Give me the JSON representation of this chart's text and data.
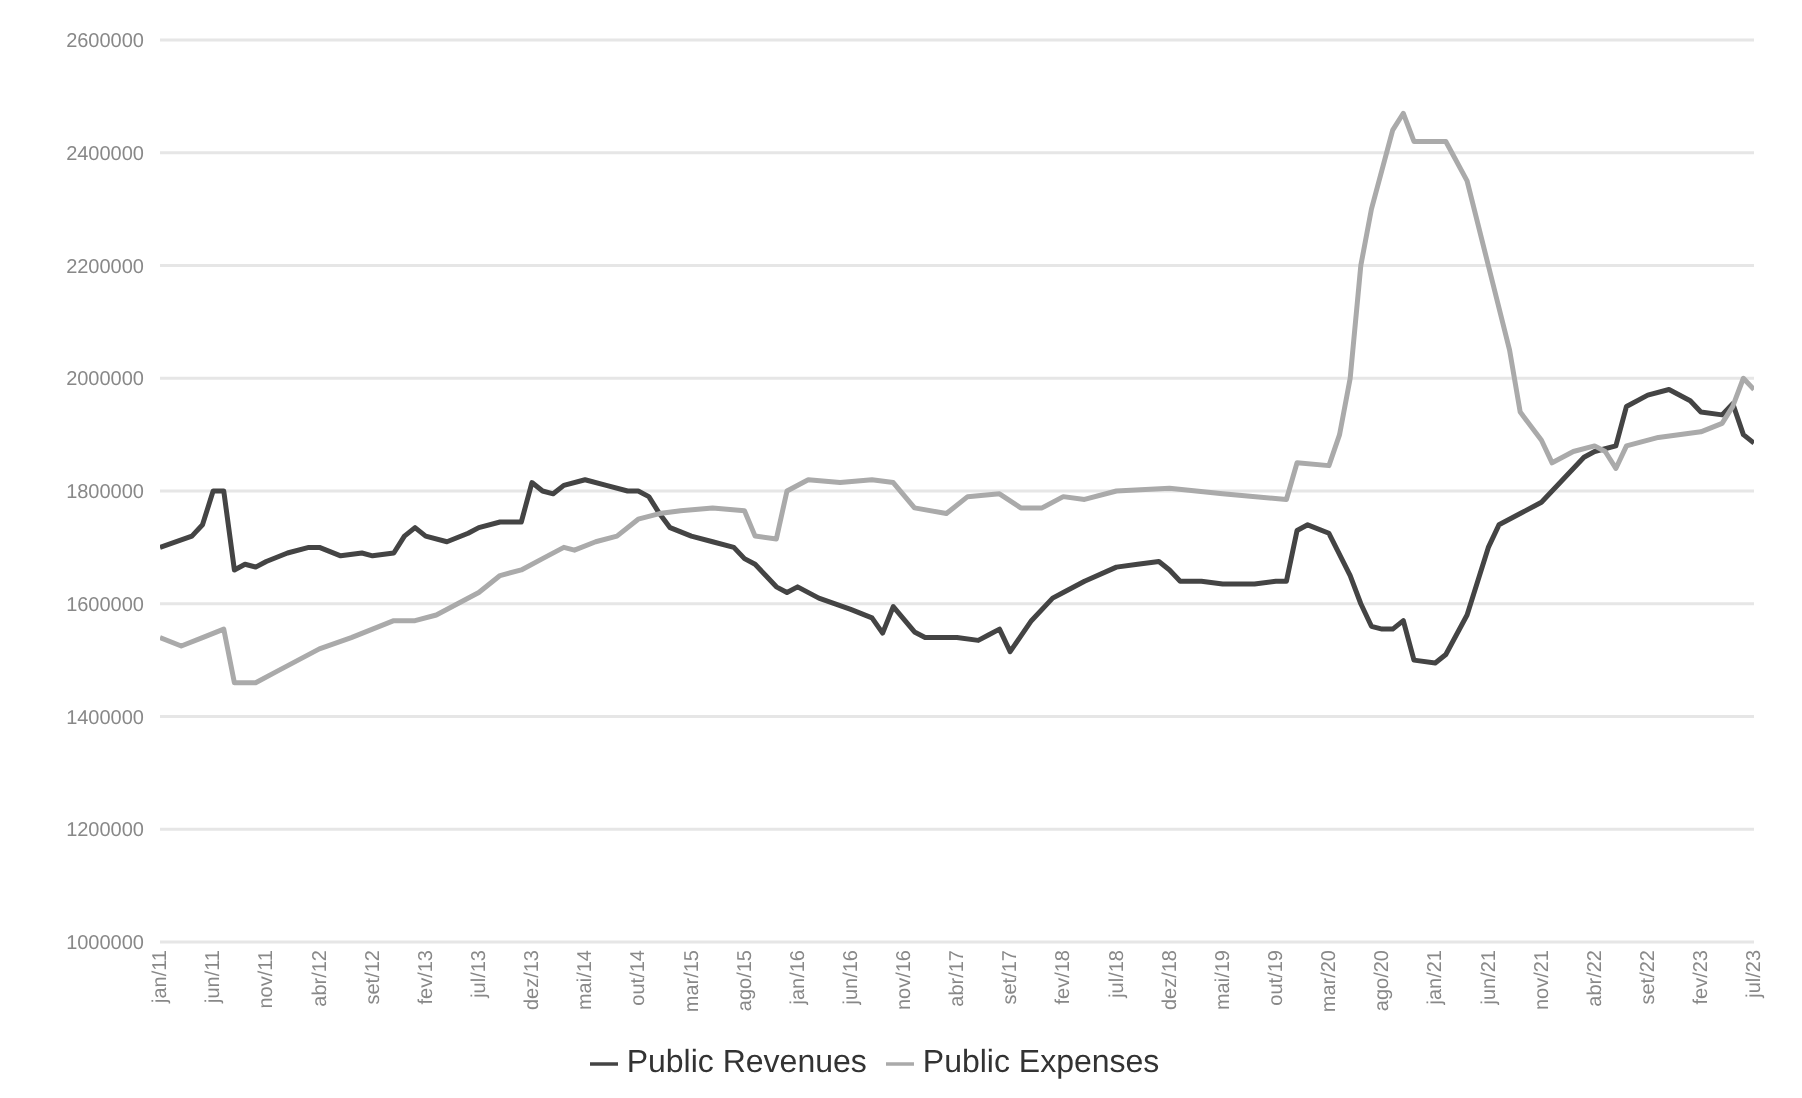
{
  "chart_data": {
    "type": "line",
    "xlim": [
      "2011-01",
      "2023-07"
    ],
    "xticks": [
      {
        "value": "2011-01",
        "label": "jan/11"
      },
      {
        "value": "2011-06",
        "label": "jun/11"
      },
      {
        "value": "2011-11",
        "label": "nov/11"
      },
      {
        "value": "2012-04",
        "label": "abr/12"
      },
      {
        "value": "2012-09",
        "label": "set/12"
      },
      {
        "value": "2013-02",
        "label": "fev/13"
      },
      {
        "value": "2013-07",
        "label": "jul/13"
      },
      {
        "value": "2013-12",
        "label": "dez/13"
      },
      {
        "value": "2014-05",
        "label": "mai/14"
      },
      {
        "value": "2014-10",
        "label": "out/14"
      },
      {
        "value": "2015-03",
        "label": "mar/15"
      },
      {
        "value": "2015-08",
        "label": "ago/15"
      },
      {
        "value": "2016-01",
        "label": "jan/16"
      },
      {
        "value": "2016-06",
        "label": "jun/16"
      },
      {
        "value": "2016-11",
        "label": "nov/16"
      },
      {
        "value": "2017-04",
        "label": "abr/17"
      },
      {
        "value": "2017-09",
        "label": "set/17"
      },
      {
        "value": "2018-02",
        "label": "fev/18"
      },
      {
        "value": "2018-07",
        "label": "jul/18"
      },
      {
        "value": "2018-12",
        "label": "dez/18"
      },
      {
        "value": "2019-05",
        "label": "mai/19"
      },
      {
        "value": "2019-10",
        "label": "out/19"
      },
      {
        "value": "2020-03",
        "label": "mar/20"
      },
      {
        "value": "2020-08",
        "label": "ago/20"
      },
      {
        "value": "2021-01",
        "label": "jan/21"
      },
      {
        "value": "2021-06",
        "label": "jun/21"
      },
      {
        "value": "2021-11",
        "label": "nov/21"
      },
      {
        "value": "2022-04",
        "label": "abr/22"
      },
      {
        "value": "2022-09",
        "label": "set/22"
      },
      {
        "value": "2023-02",
        "label": "fev/23"
      },
      {
        "value": "2023-07",
        "label": "jul/23"
      }
    ],
    "ylim": [
      1000000,
      2600000
    ],
    "yticks": [
      1000000,
      1200000,
      1400000,
      1600000,
      1800000,
      2000000,
      2200000,
      2400000,
      2600000
    ],
    "grid": "y",
    "legend": "bottom",
    "marker": "none",
    "line_style": "solid",
    "series": [
      {
        "name": "Public Revenues",
        "color": "#444444",
        "x": [
          "2011-01",
          "2011-04",
          "2011-05",
          "2011-06",
          "2011-07",
          "2011-08",
          "2011-09",
          "2011-10",
          "2011-11",
          "2012-01",
          "2012-03",
          "2012-04",
          "2012-06",
          "2012-08",
          "2012-09",
          "2012-11",
          "2012-12",
          "2013-01",
          "2013-02",
          "2013-04",
          "2013-06",
          "2013-07",
          "2013-09",
          "2013-11",
          "2013-12",
          "2014-01",
          "2014-02",
          "2014-03",
          "2014-05",
          "2014-07",
          "2014-09",
          "2014-10",
          "2014-11",
          "2014-12",
          "2015-01",
          "2015-03",
          "2015-05",
          "2015-07",
          "2015-08",
          "2015-09",
          "2015-10",
          "2015-11",
          "2015-12",
          "2016-01",
          "2016-03",
          "2016-06",
          "2016-08",
          "2016-09",
          "2016-10",
          "2016-12",
          "2017-01",
          "2017-04",
          "2017-06",
          "2017-07",
          "2017-08",
          "2017-09",
          "2017-11",
          "2018-01",
          "2018-02",
          "2018-04",
          "2018-07",
          "2018-09",
          "2018-11",
          "2018-12",
          "2019-01",
          "2019-03",
          "2019-05",
          "2019-08",
          "2019-10",
          "2019-11",
          "2019-12",
          "2020-01",
          "2020-03",
          "2020-05",
          "2020-06",
          "2020-07",
          "2020-08",
          "2020-09",
          "2020-10",
          "2020-11",
          "2021-01",
          "2021-02",
          "2021-04",
          "2021-05",
          "2021-06",
          "2021-07",
          "2021-09",
          "2021-11",
          "2022-01",
          "2022-03",
          "2022-04",
          "2022-06",
          "2022-07",
          "2022-09",
          "2022-11",
          "2023-01",
          "2023-02",
          "2023-04",
          "2023-05",
          "2023-06",
          "2023-07"
        ],
        "values": [
          1700000,
          1720000,
          1740000,
          1800000,
          1800000,
          1660000,
          1670000,
          1665000,
          1675000,
          1690000,
          1700000,
          1700000,
          1685000,
          1690000,
          1685000,
          1690000,
          1720000,
          1735000,
          1720000,
          1710000,
          1725000,
          1735000,
          1745000,
          1745000,
          1815000,
          1800000,
          1795000,
          1810000,
          1820000,
          1810000,
          1800000,
          1800000,
          1790000,
          1760000,
          1735000,
          1720000,
          1710000,
          1700000,
          1680000,
          1670000,
          1650000,
          1630000,
          1620000,
          1630000,
          1610000,
          1590000,
          1575000,
          1548000,
          1595000,
          1550000,
          1540000,
          1540000,
          1535000,
          1545000,
          1555000,
          1515000,
          1570000,
          1610000,
          1620000,
          1640000,
          1665000,
          1670000,
          1675000,
          1660000,
          1640000,
          1640000,
          1635000,
          1635000,
          1640000,
          1640000,
          1730000,
          1740000,
          1725000,
          1650000,
          1600000,
          1560000,
          1555000,
          1555000,
          1570000,
          1500000,
          1495000,
          1510000,
          1580000,
          1640000,
          1700000,
          1740000,
          1760000,
          1780000,
          1820000,
          1860000,
          1870000,
          1880000,
          1950000,
          1970000,
          1980000,
          1960000,
          1940000,
          1935000,
          1955000,
          1900000,
          1885000
        ]
      },
      {
        "name": "Public Expenses",
        "color": "#aaaaaa",
        "x": [
          "2011-01",
          "2011-03",
          "2011-05",
          "2011-07",
          "2011-08",
          "2011-10",
          "2011-12",
          "2012-02",
          "2012-04",
          "2012-07",
          "2012-09",
          "2012-11",
          "2013-01",
          "2013-03",
          "2013-05",
          "2013-07",
          "2013-09",
          "2013-11",
          "2014-01",
          "2014-03",
          "2014-04",
          "2014-06",
          "2014-08",
          "2014-10",
          "2014-12",
          "2015-02",
          "2015-05",
          "2015-08",
          "2015-09",
          "2015-11",
          "2015-12",
          "2016-02",
          "2016-05",
          "2016-08",
          "2016-10",
          "2016-12",
          "2017-03",
          "2017-05",
          "2017-08",
          "2017-10",
          "2017-12",
          "2018-02",
          "2018-04",
          "2018-07",
          "2018-12",
          "2019-05",
          "2019-11",
          "2019-12",
          "2020-03",
          "2020-04",
          "2020-05",
          "2020-06",
          "2020-07",
          "2020-09",
          "2020-10",
          "2020-11",
          "2021-02",
          "2021-04",
          "2021-06",
          "2021-08",
          "2021-09",
          "2021-11",
          "2021-12",
          "2022-02",
          "2022-04",
          "2022-05",
          "2022-06",
          "2022-07",
          "2022-10",
          "2023-02",
          "2023-04",
          "2023-05",
          "2023-06",
          "2023-07"
        ],
        "values": [
          1540000,
          1525000,
          1540000,
          1555000,
          1460000,
          1460000,
          1480000,
          1500000,
          1520000,
          1540000,
          1555000,
          1570000,
          1570000,
          1580000,
          1600000,
          1620000,
          1650000,
          1660000,
          1680000,
          1700000,
          1695000,
          1710000,
          1720000,
          1750000,
          1760000,
          1765000,
          1770000,
          1765000,
          1720000,
          1715000,
          1800000,
          1820000,
          1815000,
          1820000,
          1815000,
          1770000,
          1760000,
          1790000,
          1795000,
          1770000,
          1770000,
          1790000,
          1785000,
          1800000,
          1805000,
          1795000,
          1785000,
          1850000,
          1845000,
          1900000,
          2000000,
          2200000,
          2300000,
          2440000,
          2470000,
          2420000,
          2420000,
          2350000,
          2200000,
          2050000,
          1940000,
          1890000,
          1850000,
          1870000,
          1880000,
          1870000,
          1840000,
          1880000,
          1895000,
          1905000,
          1920000,
          1950000,
          2000000,
          1980000
        ]
      }
    ]
  }
}
